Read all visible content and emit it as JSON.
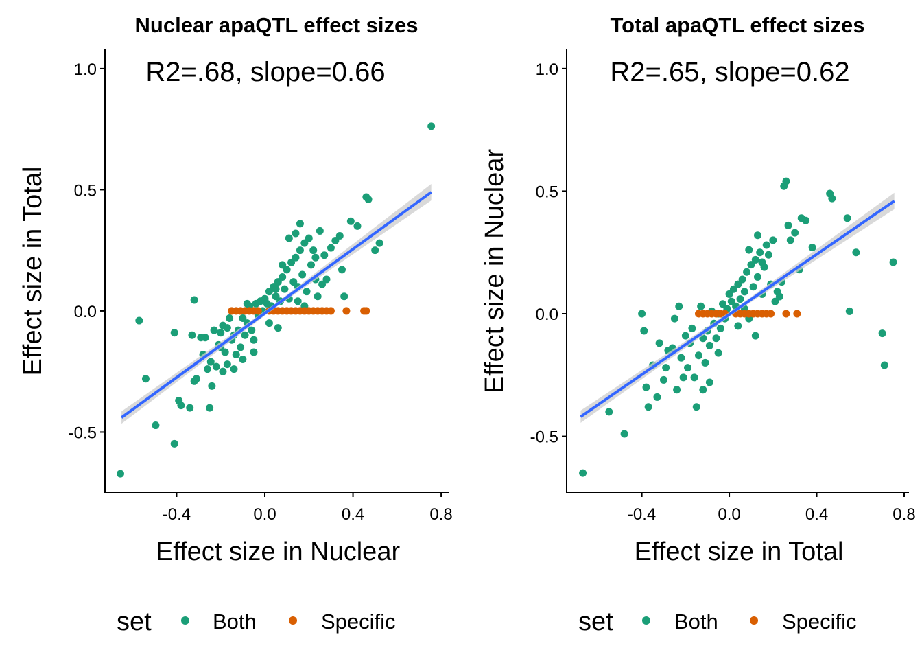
{
  "legend": {
    "title": "set",
    "entries": [
      {
        "label": "Both",
        "color": "#1B9E77"
      },
      {
        "label": "Specific",
        "color": "#D95F02"
      }
    ],
    "placement": "bottom"
  },
  "fit_line_color": "#3366FF",
  "ci_band_color": "#CCCCCC",
  "chart_data": [
    {
      "type": "scatter",
      "title": "Nuclear apaQTL effect sizes",
      "annotation": "R2=.68, slope=0.66",
      "xlabel": "Effect size in Nuclear",
      "ylabel": "Effect size in Total",
      "xlim": [
        -0.725,
        0.837
      ],
      "ylim": [
        -0.748,
        1.079
      ],
      "xticks": [
        -0.4,
        0.0,
        0.4,
        0.8
      ],
      "xtick_labels": [
        "-0.4",
        "0.0",
        "0.4",
        "0.8"
      ],
      "yticks": [
        -0.5,
        0.0,
        0.5,
        1.0
      ],
      "ytick_labels": [
        "-0.5",
        "0.0",
        "0.5",
        "1.0"
      ],
      "grid": false,
      "fit": {
        "x0": -0.65,
        "y0": -0.44,
        "x1": 0.755,
        "y1": 0.49,
        "slope": 0.66,
        "r2": 0.68
      },
      "series": [
        {
          "name": "Both",
          "points": [
            [
              0.755,
              0.762
            ],
            [
              -0.655,
              -0.672
            ],
            [
              -0.57,
              -0.04
            ],
            [
              -0.54,
              -0.28
            ],
            [
              -0.495,
              -0.472
            ],
            [
              -0.41,
              -0.09
            ],
            [
              -0.41,
              -0.548
            ],
            [
              -0.39,
              -0.37
            ],
            [
              -0.38,
              -0.39
            ],
            [
              -0.34,
              -0.4
            ],
            [
              -0.32,
              0.045
            ],
            [
              -0.33,
              -0.1
            ],
            [
              -0.31,
              -0.28
            ],
            [
              -0.32,
              -0.29
            ],
            [
              -0.28,
              -0.18
            ],
            [
              -0.27,
              -0.11
            ],
            [
              -0.25,
              -0.4
            ],
            [
              -0.24,
              -0.31
            ],
            [
              -0.245,
              -0.21
            ],
            [
              -0.22,
              -0.23
            ],
            [
              -0.21,
              -0.14
            ],
            [
              -0.2,
              -0.09
            ],
            [
              -0.19,
              -0.25
            ],
            [
              -0.19,
              -0.06
            ],
            [
              -0.18,
              -0.17
            ],
            [
              -0.17,
              -0.22
            ],
            [
              -0.16,
              -0.03
            ],
            [
              -0.15,
              -0.12
            ],
            [
              -0.14,
              -0.24
            ],
            [
              -0.13,
              -0.18
            ],
            [
              -0.12,
              -0.08
            ],
            [
              -0.11,
              -0.15
            ],
            [
              -0.1,
              -0.03
            ],
            [
              -0.1,
              -0.2
            ],
            [
              -0.09,
              -0.1
            ],
            [
              -0.08,
              -0.05
            ],
            [
              -0.07,
              0.02
            ],
            [
              -0.06,
              -0.08
            ],
            [
              -0.05,
              -0.12
            ],
            [
              -0.04,
              0.03
            ],
            [
              -0.03,
              -0.02
            ],
            [
              -0.02,
              0.04
            ],
            [
              -0.01,
              0.0
            ],
            [
              0.0,
              0.05
            ],
            [
              0.01,
              0.03
            ],
            [
              0.02,
              0.08
            ],
            [
              0.03,
              0.02
            ],
            [
              0.04,
              0.1
            ],
            [
              0.05,
              0.06
            ],
            [
              0.06,
              0.12
            ],
            [
              0.07,
              0.04
            ],
            [
              0.08,
              0.14
            ],
            [
              0.09,
              0.09
            ],
            [
              0.1,
              0.17
            ],
            [
              0.11,
              0.05
            ],
            [
              0.12,
              0.2
            ],
            [
              0.13,
              0.12
            ],
            [
              0.14,
              0.22
            ],
            [
              0.15,
              0.1
            ],
            [
              0.16,
              0.25
            ],
            [
              0.17,
              0.15
            ],
            [
              0.18,
              0.28
            ],
            [
              0.19,
              0.08
            ],
            [
              0.2,
              0.3
            ],
            [
              0.21,
              0.19
            ],
            [
              0.22,
              0.25
            ],
            [
              0.23,
              0.13
            ],
            [
              0.24,
              0.06
            ],
            [
              0.26,
              0.11
            ],
            [
              0.28,
              0.13
            ],
            [
              0.3,
              0.26
            ],
            [
              0.32,
              0.29
            ],
            [
              0.34,
              0.31
            ],
            [
              0.35,
              0.17
            ],
            [
              0.36,
              0.06
            ],
            [
              0.39,
              0.37
            ],
            [
              0.42,
              0.35
            ],
            [
              0.46,
              0.47
            ],
            [
              0.47,
              0.46
            ],
            [
              0.5,
              0.25
            ],
            [
              0.52,
              0.28
            ],
            [
              -0.29,
              -0.11
            ],
            [
              -0.26,
              -0.24
            ],
            [
              -0.23,
              -0.08
            ],
            [
              -0.2,
              -0.15
            ],
            [
              0.05,
              0.09
            ],
            [
              -0.08,
              0.03
            ],
            [
              0.06,
              -0.07
            ],
            [
              0.02,
              -0.05
            ],
            [
              0.11,
              0.3
            ],
            [
              0.16,
              0.36
            ],
            [
              0.14,
              0.32
            ],
            [
              0.08,
              0.19
            ],
            [
              0.23,
              0.22
            ],
            [
              0.27,
              0.23
            ],
            [
              -0.05,
              -0.17
            ],
            [
              -0.14,
              -0.1
            ],
            [
              -0.17,
              -0.07
            ],
            [
              0.15,
              0.04
            ],
            [
              0.18,
              0.02
            ],
            [
              0.25,
              0.33
            ]
          ]
        },
        {
          "name": "Specific",
          "points": [
            [
              -0.15,
              0.0
            ],
            [
              -0.13,
              0.0
            ],
            [
              -0.11,
              0.0
            ],
            [
              -0.09,
              0.0
            ],
            [
              -0.07,
              0.0
            ],
            [
              -0.05,
              0.0
            ],
            [
              -0.03,
              0.0
            ],
            [
              0.02,
              0.0
            ],
            [
              0.04,
              0.0
            ],
            [
              0.06,
              0.0
            ],
            [
              0.08,
              0.0
            ],
            [
              0.1,
              0.0
            ],
            [
              0.12,
              0.0
            ],
            [
              0.14,
              0.0
            ],
            [
              0.16,
              0.0
            ],
            [
              0.18,
              0.0
            ],
            [
              0.2,
              0.0
            ],
            [
              0.22,
              0.0
            ],
            [
              0.24,
              0.0
            ],
            [
              0.26,
              0.0
            ],
            [
              0.28,
              0.0
            ],
            [
              0.3,
              0.0
            ],
            [
              0.37,
              0.0
            ],
            [
              0.45,
              0.0
            ],
            [
              0.46,
              0.0
            ]
          ]
        }
      ]
    },
    {
      "type": "scatter",
      "title": "Total apaQTL effect sizes",
      "annotation": "R2=.65, slope=0.62",
      "xlabel": "Effect size in Total",
      "ylabel": "Effect size in Nuclear",
      "xlim": [
        -0.744,
        0.822
      ],
      "ylim": [
        -0.728,
        1.078
      ],
      "xticks": [
        -0.4,
        0.0,
        0.4,
        0.8
      ],
      "xtick_labels": [
        "-0.4",
        "0.0",
        "0.4",
        "0.8"
      ],
      "yticks": [
        -0.5,
        0.0,
        0.5,
        1.0
      ],
      "ytick_labels": [
        "-0.5",
        "0.0",
        "0.5",
        "1.0"
      ],
      "grid": false,
      "fit": {
        "x0": -0.68,
        "y0": -0.42,
        "x1": 0.755,
        "y1": 0.46,
        "slope": 0.62,
        "r2": 0.65
      },
      "series": [
        {
          "name": "Both",
          "points": [
            [
              -0.67,
              -0.65
            ],
            [
              -0.55,
              -0.4
            ],
            [
              -0.48,
              -0.49
            ],
            [
              -0.4,
              0.0
            ],
            [
              -0.39,
              -0.07
            ],
            [
              -0.38,
              -0.3
            ],
            [
              -0.37,
              -0.38
            ],
            [
              -0.35,
              -0.21
            ],
            [
              -0.33,
              -0.34
            ],
            [
              -0.32,
              -0.12
            ],
            [
              -0.3,
              -0.27
            ],
            [
              -0.29,
              -0.22
            ],
            [
              -0.26,
              -0.14
            ],
            [
              -0.25,
              -0.02
            ],
            [
              -0.24,
              -0.31
            ],
            [
              -0.22,
              -0.18
            ],
            [
              -0.21,
              -0.26
            ],
            [
              -0.2,
              -0.09
            ],
            [
              -0.19,
              -0.22
            ],
            [
              -0.18,
              -0.12
            ],
            [
              -0.17,
              -0.06
            ],
            [
              -0.16,
              -0.26
            ],
            [
              -0.15,
              -0.38
            ],
            [
              -0.14,
              -0.17
            ],
            [
              -0.13,
              0.03
            ],
            [
              -0.12,
              -0.1
            ],
            [
              -0.11,
              -0.2
            ],
            [
              -0.1,
              -0.07
            ],
            [
              -0.09,
              -0.13
            ],
            [
              -0.08,
              0.01
            ],
            [
              -0.07,
              -0.04
            ],
            [
              -0.06,
              -0.1
            ],
            [
              -0.05,
              0.0
            ],
            [
              -0.04,
              -0.06
            ],
            [
              -0.03,
              0.04
            ],
            [
              -0.02,
              -0.02
            ],
            [
              -0.01,
              0.02
            ],
            [
              0.0,
              0.08
            ],
            [
              0.01,
              0.05
            ],
            [
              0.02,
              0.1
            ],
            [
              0.03,
              0.03
            ],
            [
              0.04,
              0.12
            ],
            [
              0.05,
              0.06
            ],
            [
              0.06,
              0.14
            ],
            [
              0.07,
              0.09
            ],
            [
              0.08,
              0.17
            ],
            [
              0.09,
              -0.02
            ],
            [
              0.1,
              0.2
            ],
            [
              0.11,
              0.11
            ],
            [
              0.12,
              0.22
            ],
            [
              0.13,
              0.15
            ],
            [
              0.14,
              0.25
            ],
            [
              0.15,
              0.08
            ],
            [
              0.16,
              0.19
            ],
            [
              0.17,
              0.28
            ],
            [
              0.18,
              0.24
            ],
            [
              0.2,
              0.3
            ],
            [
              0.21,
              0.05
            ],
            [
              0.22,
              0.09
            ],
            [
              0.23,
              0.07
            ],
            [
              0.24,
              0.13
            ],
            [
              0.25,
              0.52
            ],
            [
              0.26,
              0.54
            ],
            [
              0.27,
              0.36
            ],
            [
              0.28,
              0.3
            ],
            [
              0.3,
              0.33
            ],
            [
              0.32,
              0.18
            ],
            [
              0.33,
              0.39
            ],
            [
              0.35,
              0.38
            ],
            [
              0.38,
              0.27
            ],
            [
              0.46,
              0.49
            ],
            [
              0.47,
              0.47
            ],
            [
              0.54,
              0.39
            ],
            [
              0.55,
              0.01
            ],
            [
              0.58,
              0.25
            ],
            [
              0.7,
              -0.08
            ],
            [
              0.71,
              -0.21
            ],
            [
              0.75,
              0.21
            ],
            [
              0.12,
              -0.09
            ],
            [
              -0.28,
              -0.15
            ],
            [
              -0.23,
              0.03
            ],
            [
              0.19,
              0.12
            ],
            [
              0.09,
              0.26
            ],
            [
              0.13,
              0.32
            ],
            [
              -0.09,
              -0.28
            ],
            [
              -0.05,
              -0.16
            ],
            [
              0.04,
              -0.05
            ],
            [
              0.15,
              0.21
            ],
            [
              0.07,
              0.02
            ],
            [
              -0.12,
              -0.31
            ]
          ]
        },
        {
          "name": "Specific",
          "points": [
            [
              -0.14,
              0.0
            ],
            [
              -0.12,
              0.0
            ],
            [
              -0.1,
              0.0
            ],
            [
              -0.08,
              0.0
            ],
            [
              -0.06,
              0.0
            ],
            [
              -0.04,
              0.0
            ],
            [
              -0.02,
              0.0
            ],
            [
              0.03,
              0.0
            ],
            [
              0.05,
              0.0
            ],
            [
              0.07,
              0.0
            ],
            [
              0.09,
              0.0
            ],
            [
              0.11,
              0.0
            ],
            [
              0.13,
              0.0
            ],
            [
              0.15,
              0.0
            ],
            [
              0.17,
              0.0
            ],
            [
              0.19,
              0.0
            ],
            [
              0.26,
              0.0
            ],
            [
              0.31,
              0.0
            ]
          ]
        }
      ]
    }
  ]
}
